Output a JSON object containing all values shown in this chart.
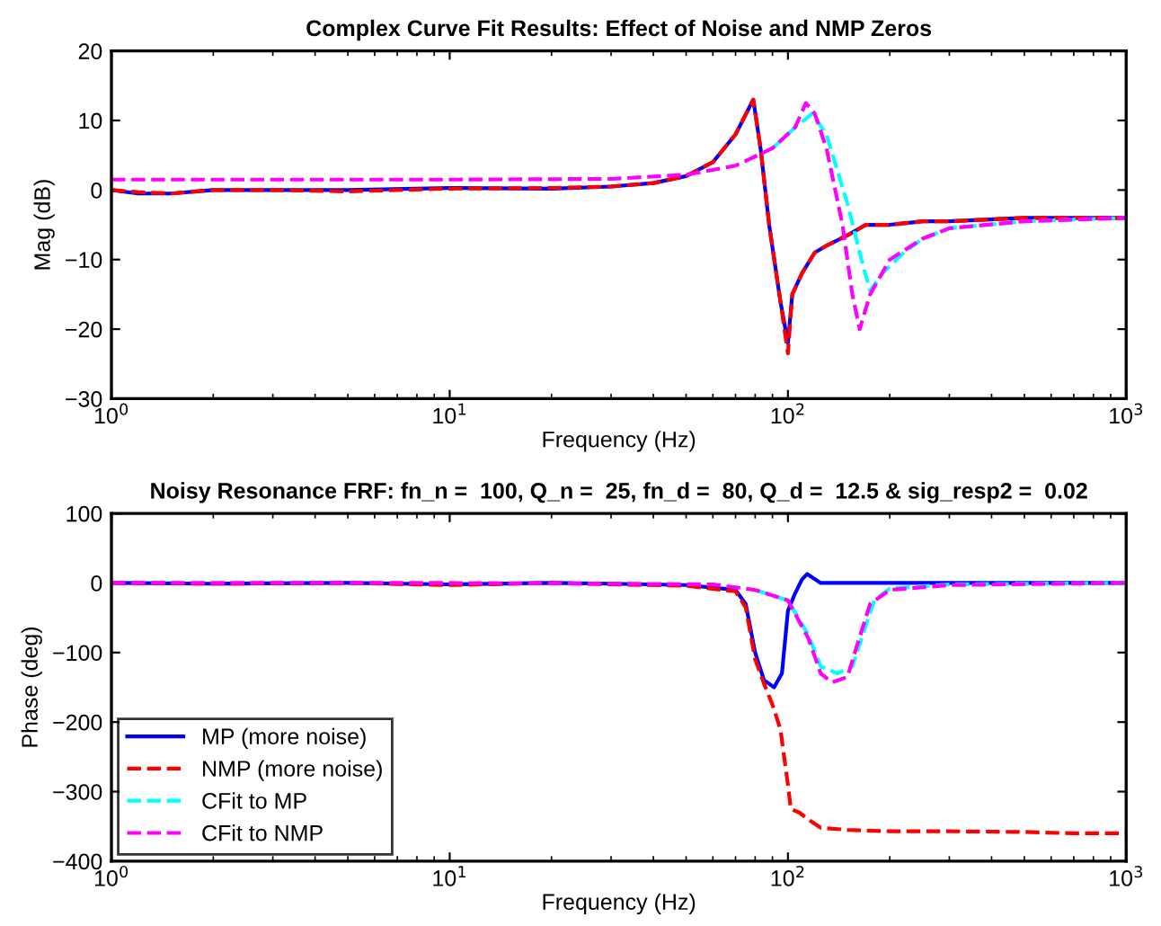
{
  "chart_data": [
    {
      "type": "line",
      "title": "Complex Curve Fit Results: Effect of Noise and NMP Zeros",
      "xlabel": "Frequency (Hz)",
      "ylabel": "Mag (dB)",
      "log": "x",
      "xlim": [
        1,
        1000
      ],
      "ylim": [
        -30,
        20
      ],
      "xticks": [
        {
          "value": 1,
          "label": "10$^{0}$"
        },
        {
          "value": 10,
          "label": "10$^{1}$"
        },
        {
          "value": 100,
          "label": "10$^{2}$"
        },
        {
          "value": 1000,
          "label": "10$^{3}$"
        }
      ],
      "yticks": [
        -30,
        -20,
        -10,
        0,
        10,
        20
      ],
      "grid": false,
      "legend": false,
      "series": [
        {
          "color": "#0000ff",
          "line_style": "solid",
          "x": [
            1,
            1.2,
            1.5,
            2,
            3,
            5,
            10,
            20,
            30,
            40,
            50,
            60,
            70,
            79,
            83,
            88,
            95,
            100,
            103,
            110,
            120,
            130,
            150,
            170,
            200,
            250,
            300,
            500,
            1000
          ],
          "values": [
            0,
            -0.5,
            -0.5,
            0,
            0,
            0,
            0.3,
            0.2,
            0.5,
            1,
            2,
            4,
            8,
            13,
            6,
            -5,
            -16,
            -22,
            -15,
            -12,
            -9,
            -8,
            -6.5,
            -5,
            -5,
            -4.5,
            -4.5,
            -4,
            -4
          ]
        },
        {
          "color": "#ff0000",
          "line_style": "dashed",
          "x": [
            1,
            1.2,
            1.5,
            2,
            3,
            5,
            10,
            20,
            30,
            40,
            50,
            60,
            70,
            79,
            83,
            88,
            95,
            100,
            103,
            110,
            120,
            130,
            150,
            170,
            200,
            250,
            300,
            500,
            1000
          ],
          "values": [
            0,
            -0.3,
            -0.5,
            0,
            0,
            -0.2,
            0.2,
            0.3,
            0.5,
            1,
            2,
            4,
            8,
            13,
            6,
            -5,
            -16,
            -23.5,
            -15,
            -12,
            -9,
            -8,
            -6.5,
            -5,
            -5,
            -4.5,
            -4.5,
            -4,
            -4
          ]
        },
        {
          "color": "#00ffff",
          "line_style": "dashed",
          "x": [
            90,
            105,
            118,
            130,
            150,
            165,
            175,
            190,
            220,
            250,
            300,
            500,
            1000
          ],
          "values": [
            6,
            9,
            11,
            8,
            -2,
            -10,
            -14.5,
            -12,
            -9,
            -7,
            -5.5,
            -4.5,
            -4
          ]
        },
        {
          "color": "#ff00ff",
          "line_style": "dashed",
          "x": [
            1,
            10,
            30,
            50,
            70,
            90,
            105,
            113,
            120,
            130,
            145,
            155,
            163,
            175,
            200,
            250,
            300,
            500,
            1000
          ],
          "values": [
            1.5,
            1.5,
            1.6,
            2.2,
            3.5,
            6,
            9,
            12.5,
            11,
            6,
            -5,
            -15,
            -20,
            -15,
            -10,
            -7,
            -5.5,
            -4.5,
            -4
          ]
        }
      ]
    },
    {
      "type": "line",
      "title": "Noisy Resonance FRF: fn_n =  100, Q_n =  25, fn_d =  80, Q_d =  12.5 & sig_resp2 =  0.02",
      "xlabel": "Frequency (Hz)",
      "ylabel": "Phase (deg)",
      "log": "x",
      "xlim": [
        1,
        1000
      ],
      "ylim": [
        -400,
        100
      ],
      "xticks": [
        {
          "value": 1,
          "label": "10$^{0}$"
        },
        {
          "value": 10,
          "label": "10$^{1}$"
        },
        {
          "value": 100,
          "label": "10$^{2}$"
        },
        {
          "value": 1000,
          "label": "10$^{3}$"
        }
      ],
      "yticks": [
        -400,
        -300,
        -200,
        -100,
        0,
        100
      ],
      "grid": false,
      "legend": "bottom left",
      "series": [
        {
          "name": "MP (more noise)",
          "color": "#0000ff",
          "line_style": "solid",
          "x": [
            1,
            2,
            5,
            10,
            20,
            30,
            50,
            70,
            75,
            80,
            85,
            91,
            96,
            100,
            105,
            110,
            114,
            125,
            150,
            200,
            300,
            500,
            1000
          ],
          "values": [
            0,
            -1,
            0,
            -2,
            0,
            -1,
            -3,
            -10,
            -30,
            -100,
            -140,
            -150,
            -130,
            -40,
            -15,
            5,
            13,
            0,
            0,
            0,
            0,
            0,
            0
          ]
        },
        {
          "name": "NMP (more noise)",
          "color": "#ff0000",
          "line_style": "dashed",
          "x": [
            1,
            2,
            5,
            10,
            20,
            30,
            50,
            70,
            75,
            80,
            85,
            90,
            95,
            100,
            102,
            108,
            115,
            125,
            150,
            200,
            300,
            500,
            700,
            1000
          ],
          "values": [
            0,
            -1,
            0,
            -3,
            0,
            -2,
            -4,
            -12,
            -35,
            -110,
            -145,
            -175,
            -210,
            -290,
            -325,
            -330,
            -340,
            -352,
            -355,
            -357,
            -357,
            -358,
            -360,
            -360
          ]
        },
        {
          "name": "CFit to MP",
          "color": "#00ffff",
          "line_style": "dashed",
          "x": [
            80,
            100,
            115,
            125,
            140,
            155,
            165,
            180,
            200,
            300,
            1000
          ],
          "values": [
            -10,
            -25,
            -75,
            -120,
            -130,
            -120,
            -80,
            -25,
            -8,
            -2,
            0
          ]
        },
        {
          "name": "CFit to NMP",
          "color": "#ff00ff",
          "line_style": "dashed",
          "x": [
            1,
            10,
            30,
            60,
            80,
            100,
            115,
            125,
            135,
            150,
            160,
            175,
            200,
            300,
            1000
          ],
          "values": [
            0,
            0,
            -1,
            -2,
            -10,
            -25,
            -80,
            -130,
            -143,
            -135,
            -90,
            -30,
            -10,
            -3,
            0
          ]
        }
      ]
    }
  ]
}
